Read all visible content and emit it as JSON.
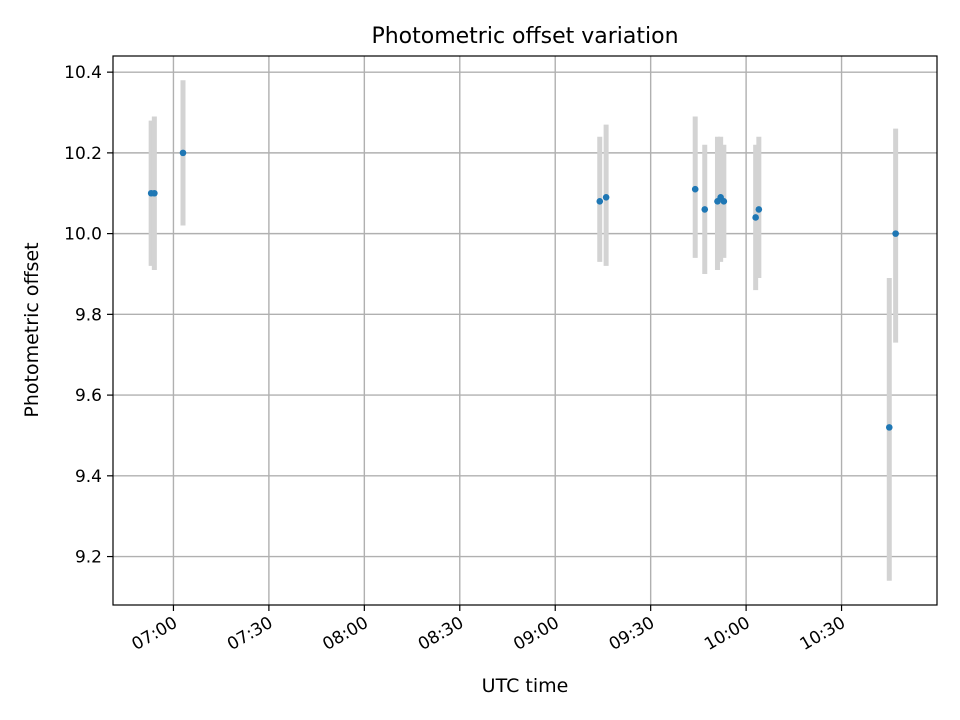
{
  "chart_data": {
    "type": "scatter",
    "title": "Photometric offset variation",
    "xlabel": "UTC time",
    "ylabel": "Photometric offset",
    "xlim": [
      "06:41",
      "11:00"
    ],
    "ylim": [
      9.08,
      10.44
    ],
    "x_ticks": [
      "07:00",
      "07:30",
      "08:00",
      "08:30",
      "09:00",
      "09:30",
      "10:00",
      "10:30"
    ],
    "y_ticks": [
      "9.2",
      "9.4",
      "9.6",
      "9.8",
      "10.0",
      "10.2",
      "10.4"
    ],
    "grid": true,
    "legend": "none",
    "colors": {
      "marker": "#1f77b4",
      "errorbar": "#d3d3d3",
      "grid": "#b0b0b0"
    },
    "points": [
      {
        "time": "06:53",
        "value": 10.1,
        "err_low": 9.92,
        "err_high": 10.28
      },
      {
        "time": "06:54",
        "value": 10.1,
        "err_low": 9.91,
        "err_high": 10.29
      },
      {
        "time": "07:03",
        "value": 10.2,
        "err_low": 10.02,
        "err_high": 10.38
      },
      {
        "time": "09:14",
        "value": 10.08,
        "err_low": 9.93,
        "err_high": 10.24
      },
      {
        "time": "09:16",
        "value": 10.09,
        "err_low": 9.92,
        "err_high": 10.27
      },
      {
        "time": "09:44",
        "value": 10.11,
        "err_low": 9.94,
        "err_high": 10.29
      },
      {
        "time": "09:47",
        "value": 10.06,
        "err_low": 9.9,
        "err_high": 10.22
      },
      {
        "time": "09:51",
        "value": 10.08,
        "err_low": 9.91,
        "err_high": 10.24
      },
      {
        "time": "09:52",
        "value": 10.09,
        "err_low": 9.93,
        "err_high": 10.24
      },
      {
        "time": "09:53",
        "value": 10.08,
        "err_low": 9.94,
        "err_high": 10.22
      },
      {
        "time": "10:03",
        "value": 10.04,
        "err_low": 9.86,
        "err_high": 10.22
      },
      {
        "time": "10:04",
        "value": 10.06,
        "err_low": 9.89,
        "err_high": 10.24
      },
      {
        "time": "10:45",
        "value": 9.52,
        "err_low": 9.14,
        "err_high": 9.89
      },
      {
        "time": "10:47",
        "value": 10.0,
        "err_low": 9.73,
        "err_high": 10.26
      }
    ]
  }
}
